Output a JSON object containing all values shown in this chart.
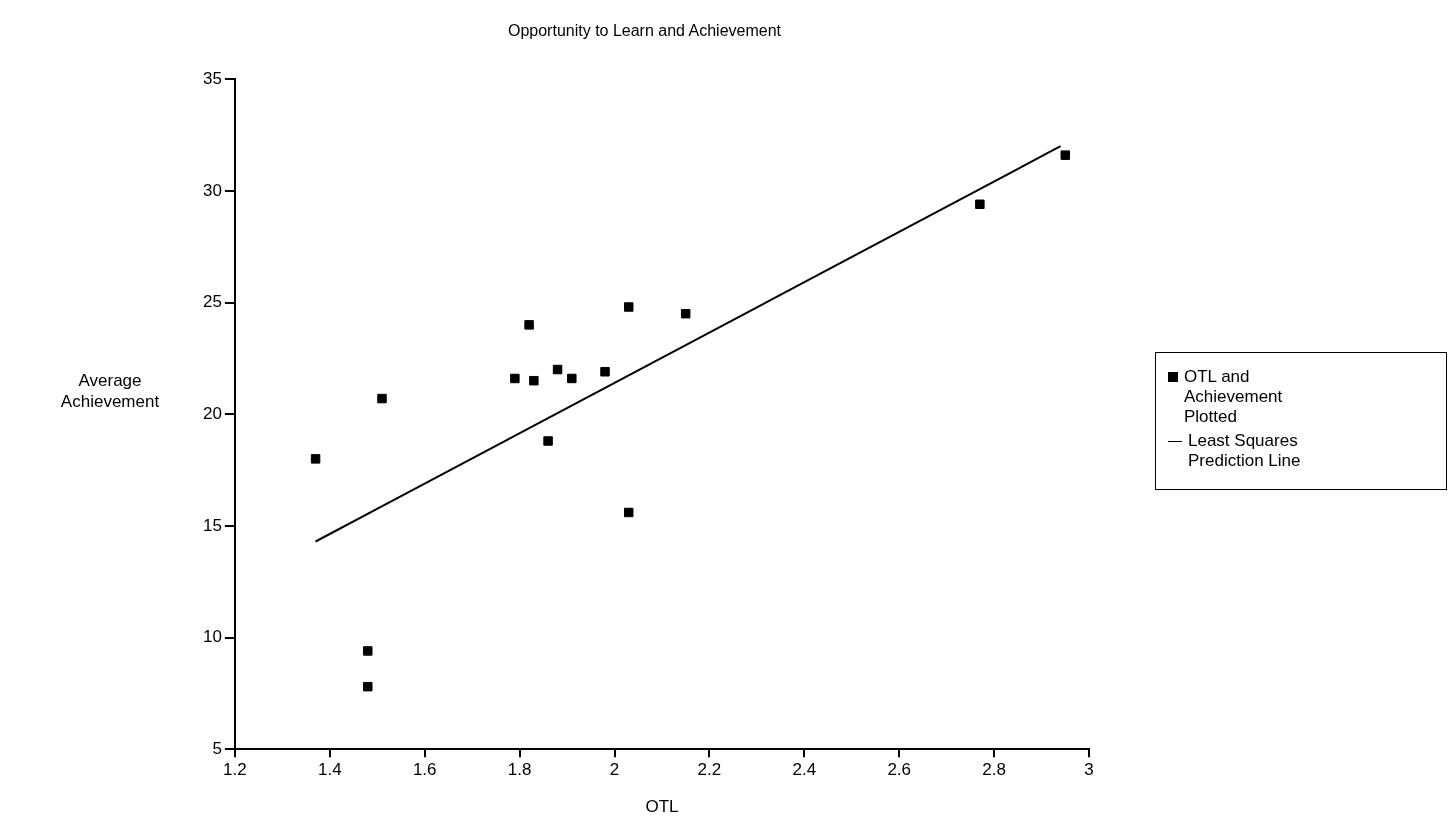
{
  "chart_data": {
    "type": "scatter",
    "title": "Opportunity to Learn and Achievement",
    "xlabel": "OTL",
    "ylabel": "Average Achievement",
    "xlim": [
      1.2,
      3
    ],
    "xticks": [
      1.2,
      1.4,
      1.6,
      1.8,
      2,
      2.2,
      2.4,
      2.6,
      2.8,
      3
    ],
    "ylim": [
      5,
      35
    ],
    "yticks": [
      5,
      10,
      15,
      20,
      25,
      30,
      35
    ],
    "grid": false,
    "legend": "right",
    "series": [
      {
        "name": "OTL and Achievement Plotted",
        "marker": "square",
        "color": "#000000",
        "x": [
          1.37,
          1.48,
          1.48,
          1.51,
          1.79,
          1.82,
          1.83,
          1.86,
          1.88,
          1.91,
          1.98,
          2.03,
          2.03,
          2.15,
          2.77,
          2.95
        ],
        "values": [
          18.0,
          9.4,
          7.8,
          20.7,
          21.6,
          24.0,
          21.5,
          18.8,
          22.0,
          21.6,
          21.9,
          24.8,
          15.6,
          24.5,
          29.4,
          31.6
        ]
      },
      {
        "name": "Least Squares Prediction Line",
        "type": "line",
        "marker": "none",
        "color": "#000000",
        "x": [
          1.37,
          2.94
        ],
        "values": [
          14.3,
          32.0
        ]
      }
    ]
  }
}
